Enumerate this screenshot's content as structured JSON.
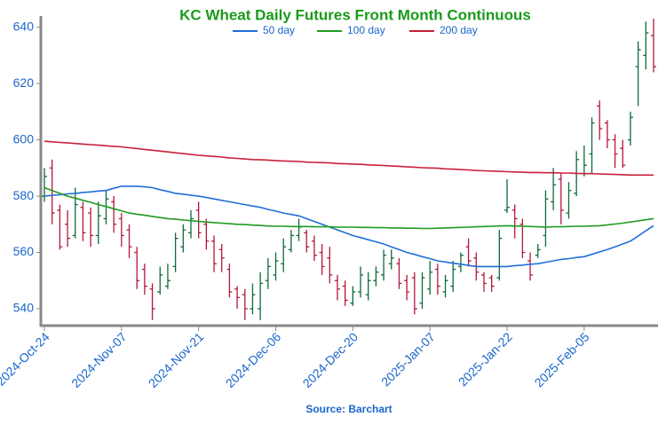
{
  "chart_data": {
    "type": "ohlc",
    "title": "KC Wheat Daily Futures Front Month Continuous",
    "source": "Source: Barchart",
    "categories": [
      "2024-Oct-24",
      null,
      null,
      null,
      null,
      null,
      null,
      null,
      null,
      null,
      "2024-Nov-07",
      null,
      null,
      null,
      null,
      null,
      null,
      null,
      null,
      null,
      "2024-Nov-21",
      null,
      null,
      null,
      null,
      null,
      null,
      null,
      null,
      null,
      "2024-Dec-06",
      null,
      null,
      null,
      null,
      null,
      null,
      null,
      null,
      null,
      "2024-Dec-20",
      null,
      null,
      null,
      null,
      null,
      null,
      null,
      null,
      null,
      "2025-Jan-07",
      null,
      null,
      null,
      null,
      null,
      null,
      null,
      null,
      null,
      "2025-Jan-22",
      null,
      null,
      null,
      null,
      null,
      null,
      null,
      null,
      null,
      "2025-Feb-05",
      null,
      null,
      null,
      null,
      null,
      null,
      null,
      null,
      null
    ],
    "open": [
      580,
      590,
      575,
      570,
      566,
      576,
      574,
      566,
      572,
      578,
      572,
      568,
      560,
      554,
      547,
      546,
      548,
      555,
      562,
      567,
      575,
      570,
      564,
      561,
      554,
      547,
      545,
      540,
      540,
      550,
      552,
      556,
      561,
      566,
      567,
      564,
      560,
      558,
      550,
      548,
      542,
      546,
      545,
      550,
      552,
      556,
      556,
      550,
      551,
      542,
      547,
      554,
      546,
      548,
      555,
      562,
      558,
      552,
      551,
      551,
      575,
      575,
      570,
      557,
      559,
      566,
      578,
      586,
      574,
      581,
      588,
      595,
      612,
      606,
      600,
      597,
      600,
      626,
      630,
      637
    ],
    "high": [
      590,
      593,
      577,
      575,
      583,
      578,
      576,
      578,
      582,
      580,
      574,
      570,
      562,
      556,
      549,
      555,
      556,
      567,
      570,
      575,
      578,
      572,
      566,
      563,
      556,
      548,
      547,
      549,
      553,
      558,
      560,
      565,
      568,
      572,
      568,
      566,
      563,
      562,
      552,
      550,
      548,
      555,
      553,
      555,
      561,
      561,
      558,
      552,
      553,
      553,
      557,
      556,
      552,
      557,
      560,
      565,
      560,
      553,
      552,
      568,
      586,
      577,
      572,
      560,
      563,
      582,
      590,
      588,
      585,
      596,
      598,
      608,
      614,
      607,
      602,
      600,
      610,
      635,
      642,
      643
    ],
    "low": [
      578,
      570,
      561,
      562,
      565,
      564,
      562,
      563,
      570,
      567,
      562,
      558,
      547,
      545,
      536,
      545,
      547,
      553,
      560,
      565,
      565,
      561,
      553,
      553,
      544,
      540,
      536,
      538,
      536,
      547,
      550,
      553,
      560,
      564,
      560,
      557,
      552,
      549,
      543,
      541,
      541,
      544,
      543,
      548,
      550,
      554,
      547,
      543,
      538,
      540,
      545,
      545,
      544,
      546,
      553,
      555,
      550,
      546,
      546,
      550,
      574,
      565,
      558,
      550,
      558,
      562,
      575,
      570,
      572,
      580,
      587,
      588,
      600,
      597,
      590,
      590,
      598,
      612,
      625,
      624
    ],
    "close": [
      587,
      574,
      562,
      565,
      577,
      567,
      566,
      573,
      579,
      570,
      566,
      562,
      550,
      548,
      540,
      552,
      550,
      565,
      568,
      572,
      567,
      564,
      556,
      558,
      546,
      544,
      540,
      545,
      549,
      555,
      557,
      562,
      566,
      569,
      562,
      559,
      555,
      552,
      547,
      543,
      546,
      552,
      550,
      553,
      559,
      558,
      549,
      546,
      540,
      551,
      553,
      548,
      550,
      554,
      559,
      557,
      553,
      549,
      548,
      565,
      576,
      572,
      560,
      552,
      561,
      579,
      584,
      575,
      582,
      593,
      591,
      606,
      604,
      600,
      595,
      591,
      608,
      632,
      638,
      626
    ],
    "up_color": "#0e6a3a",
    "down_color": "#b3173a",
    "series": [
      {
        "name": "50 day",
        "color": "#1f6fd8",
        "values": [
          580,
          580.3,
          580.5,
          580.8,
          581,
          581.3,
          581.5,
          581.8,
          582,
          582.8,
          583.5,
          583.5,
          583.5,
          583.3,
          583,
          582.3,
          581.7,
          581,
          580.7,
          580.3,
          580,
          579.5,
          579,
          578.5,
          578,
          577.5,
          577,
          576.5,
          576,
          575.3,
          574.7,
          574,
          573.5,
          573,
          572,
          571,
          570,
          569,
          568,
          567,
          566,
          565.3,
          564.5,
          563.8,
          563,
          562,
          561,
          560,
          559.3,
          558.5,
          557.8,
          557,
          556.6,
          556.2,
          555.8,
          555.4,
          555,
          555,
          555,
          555,
          555,
          555.3,
          555.5,
          555.8,
          556,
          556.5,
          557,
          557.5,
          557.8,
          558.2,
          558.5,
          559.3,
          560.2,
          561,
          562,
          563,
          564,
          565.8,
          567.7,
          569.5
        ]
      },
      {
        "name": "100 day",
        "color": "#1f9a1f",
        "values": [
          583,
          582,
          581,
          580,
          579.3,
          578.5,
          577.8,
          577,
          576.3,
          575.5,
          574.8,
          574,
          573.6,
          573.2,
          572.8,
          572.4,
          572,
          571.8,
          571.5,
          571.3,
          571,
          570.8,
          570.6,
          570.4,
          570.2,
          570,
          569.9,
          569.7,
          569.6,
          569.4,
          569.3,
          569.3,
          569.2,
          569.2,
          569.2,
          569.1,
          569.1,
          569.1,
          569,
          569,
          569,
          568.9,
          568.9,
          568.8,
          568.8,
          568.7,
          568.7,
          568.6,
          568.6,
          568.5,
          568.5,
          568.6,
          568.7,
          568.8,
          568.9,
          569,
          569.1,
          569.2,
          569.3,
          569.4,
          569.5,
          569.4,
          569.3,
          569.2,
          569.1,
          569,
          569.1,
          569.1,
          569.2,
          569.3,
          569.3,
          569.4,
          569.5,
          569.8,
          570.1,
          570.4,
          570.8,
          571.2,
          571.6,
          572
        ]
      },
      {
        "name": "200 day",
        "color": "#c8203a",
        "values": [
          599.5,
          599.3,
          599.1,
          598.9,
          598.7,
          598.5,
          598.3,
          598.1,
          597.9,
          597.7,
          597.5,
          597.2,
          596.9,
          596.6,
          596.3,
          596,
          595.7,
          595.4,
          595.1,
          594.8,
          594.5,
          594.3,
          594.1,
          593.9,
          593.6,
          593.4,
          593.2,
          593,
          592.9,
          592.8,
          592.6,
          592.5,
          592.4,
          592.3,
          592.1,
          592,
          591.9,
          591.8,
          591.6,
          591.5,
          591.4,
          591.3,
          591.1,
          591,
          590.9,
          590.7,
          590.6,
          590.4,
          590.3,
          590.1,
          590,
          589.9,
          589.7,
          589.6,
          589.4,
          589.3,
          589.1,
          589,
          588.9,
          588.8,
          588.7,
          588.6,
          588.5,
          588.4,
          588.4,
          588.3,
          588.3,
          588.2,
          588.2,
          588.1,
          588,
          588,
          587.9,
          587.8,
          587.7,
          587.6,
          587.5,
          587.5,
          587.5,
          587.5
        ]
      }
    ],
    "ylim": [
      534,
      644
    ],
    "yticks": [
      540,
      560,
      580,
      600,
      620,
      640
    ],
    "grid": false
  }
}
